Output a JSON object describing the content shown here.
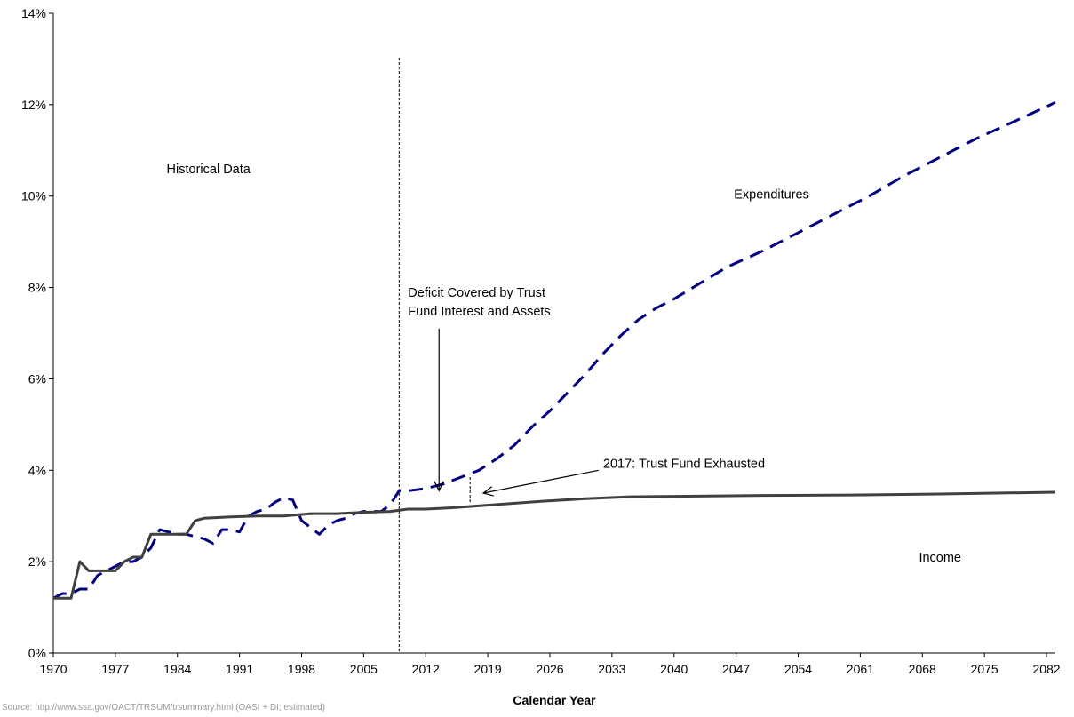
{
  "chart_data": {
    "type": "line",
    "title": "",
    "xlabel": "Calendar Year",
    "ylabel": "",
    "xlim": [
      1970,
      2083
    ],
    "ylim": [
      0,
      14
    ],
    "y_unit": "%",
    "x_ticks": [
      1970,
      1977,
      1984,
      1991,
      1998,
      2005,
      2012,
      2019,
      2026,
      2033,
      2040,
      2047,
      2054,
      2061,
      2068,
      2075,
      2082
    ],
    "y_ticks": [
      0,
      2,
      4,
      6,
      8,
      10,
      12,
      14
    ],
    "y_tick_labels": [
      "0%",
      "2%",
      "4%",
      "6%",
      "8%",
      "10%",
      "12%",
      "14%"
    ],
    "grid": false,
    "legend": "none",
    "colors": {
      "expenditures": "#000080",
      "income": "#404040",
      "axis": "#000000"
    },
    "series": [
      {
        "name": "Expenditures",
        "style": "dashed",
        "x": [
          1970,
          1971,
          1972,
          1973,
          1974,
          1975,
          1976,
          1977,
          1978,
          1979,
          1980,
          1981,
          1982,
          1983,
          1984,
          1985,
          1986,
          1987,
          1988,
          1989,
          1990,
          1991,
          1992,
          1993,
          1994,
          1995,
          1996,
          1997,
          1998,
          1999,
          2000,
          2001,
          2002,
          2003,
          2004,
          2005,
          2006,
          2007,
          2008,
          2009,
          2010,
          2012,
          2014,
          2016,
          2018,
          2020,
          2022,
          2024,
          2026,
          2028,
          2030,
          2032,
          2034,
          2036,
          2038,
          2040,
          2043,
          2046,
          2050,
          2054,
          2058,
          2062,
          2066,
          2070,
          2074,
          2078,
          2083
        ],
        "y": [
          1.2,
          1.3,
          1.3,
          1.4,
          1.4,
          1.7,
          1.8,
          1.9,
          2.0,
          2.0,
          2.1,
          2.3,
          2.7,
          2.65,
          2.6,
          2.6,
          2.55,
          2.5,
          2.4,
          2.7,
          2.7,
          2.65,
          3.0,
          3.1,
          3.15,
          3.3,
          3.4,
          3.35,
          2.9,
          2.75,
          2.6,
          2.8,
          2.9,
          2.95,
          3.05,
          3.1,
          3.1,
          3.1,
          3.25,
          3.55,
          3.55,
          3.6,
          3.7,
          3.85,
          4.0,
          4.25,
          4.55,
          4.95,
          5.3,
          5.7,
          6.1,
          6.55,
          6.95,
          7.3,
          7.55,
          7.75,
          8.1,
          8.45,
          8.8,
          9.2,
          9.6,
          10.0,
          10.45,
          10.85,
          11.25,
          11.6,
          12.05
        ]
      },
      {
        "name": "Income",
        "style": "solid",
        "x": [
          1970,
          1972,
          1973,
          1974,
          1975,
          1976,
          1977,
          1978,
          1979,
          1980,
          1981,
          1982,
          1983,
          1984,
          1985,
          1986,
          1987,
          1990,
          1993,
          1996,
          1999,
          2002,
          2005,
          2008,
          2010,
          2012,
          2015,
          2020,
          2025,
          2030,
          2035,
          2040,
          2050,
          2060,
          2070,
          2083
        ],
        "y": [
          1.2,
          1.2,
          2.0,
          1.8,
          1.8,
          1.8,
          1.8,
          2.0,
          2.1,
          2.1,
          2.6,
          2.6,
          2.6,
          2.6,
          2.6,
          2.9,
          2.95,
          2.98,
          3.0,
          3.0,
          3.05,
          3.05,
          3.08,
          3.1,
          3.15,
          3.15,
          3.18,
          3.25,
          3.32,
          3.38,
          3.42,
          3.43,
          3.45,
          3.46,
          3.48,
          3.52
        ]
      }
    ],
    "vertical_marker_year": 2009,
    "exhaustion_marker": {
      "x": 2017,
      "y_low": 3.3,
      "y_high": 3.85
    },
    "annotations": {
      "historical": "Historical Data",
      "expenditures": "Expenditures",
      "income": "Income",
      "deficit_line1": "Deficit Covered by Trust",
      "deficit_line2": "Fund Interest and Assets",
      "exhausted": "2017: Trust Fund Exhausted"
    },
    "annotation_anchors": {
      "historical": {
        "x": 1987.5,
        "y": 10.5
      },
      "expenditures": {
        "x": 2051,
        "y": 9.95
      },
      "income": {
        "x": 2070,
        "y": 2.0
      },
      "deficit": {
        "x": 2010,
        "y": 7.8
      },
      "exhausted": {
        "x": 2032,
        "y": 4.05
      }
    },
    "arrows": [
      {
        "from": [
          2013.5,
          7.1
        ],
        "to": [
          2013.5,
          3.55
        ]
      },
      {
        "from": [
          2031.5,
          4.0
        ],
        "to": [
          2018.5,
          3.5
        ]
      }
    ],
    "footnote": "Source: http://www.ssa.gov/OACT/TRSUM/trsummary.html (OASI + DI; estimated)"
  }
}
